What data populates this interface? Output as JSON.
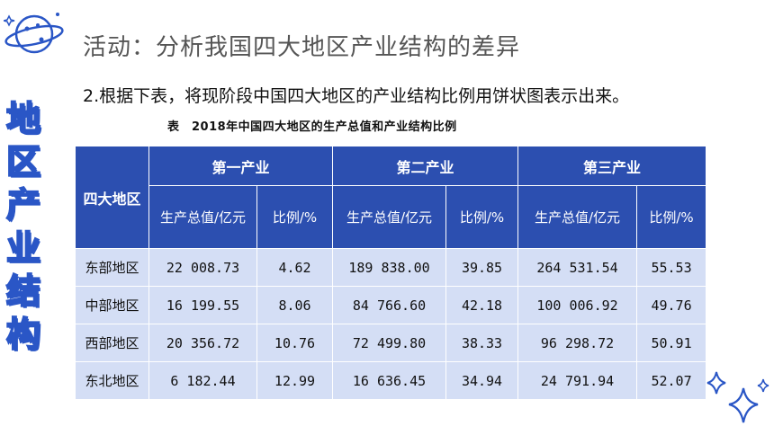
{
  "header": {
    "title": "活动：分析我国四大地区产业结构的差异",
    "side_chars": [
      "地",
      "区",
      "产",
      "业",
      "结",
      "构"
    ]
  },
  "task": {
    "instruction": "2.根据下表，将现阶段中国四大地区的产业结构比例用饼状图表示出来。",
    "table_caption": "表　2018年中国四大地区的生产总值和产业结构比例"
  },
  "table": {
    "region_header": "四大地区",
    "groups": [
      "第一产业",
      "第二产业",
      "第三产业"
    ],
    "sub_headers": [
      "生产总值/亿元",
      "比例/%",
      "生产总值/亿元",
      "比例/%",
      "生产总值/亿元",
      "比例/%"
    ],
    "rows": [
      {
        "region": "东部地区",
        "cells": [
          "22 008.73",
          "4.62",
          "189 838.00",
          "39.85",
          "264 531.54",
          "55.53"
        ]
      },
      {
        "region": "中部地区",
        "cells": [
          "16 199.55",
          "8.06",
          "84 766.60",
          "42.18",
          "100 006.92",
          "49.76"
        ]
      },
      {
        "region": "西部地区",
        "cells": [
          "20 356.72",
          "10.76",
          "72 499.80",
          "38.33",
          "96 298.72",
          "50.91"
        ]
      },
      {
        "region": "东北地区",
        "cells": [
          "6 182.44",
          "12.99",
          "16 636.45",
          "34.94",
          "24 791.94",
          "52.07"
        ]
      }
    ]
  },
  "decor": {
    "planet_icon": "planet-icon",
    "stars_icon": "stars-icon",
    "accent": "#2c4fb0",
    "cell_bg": "#d4def5"
  }
}
